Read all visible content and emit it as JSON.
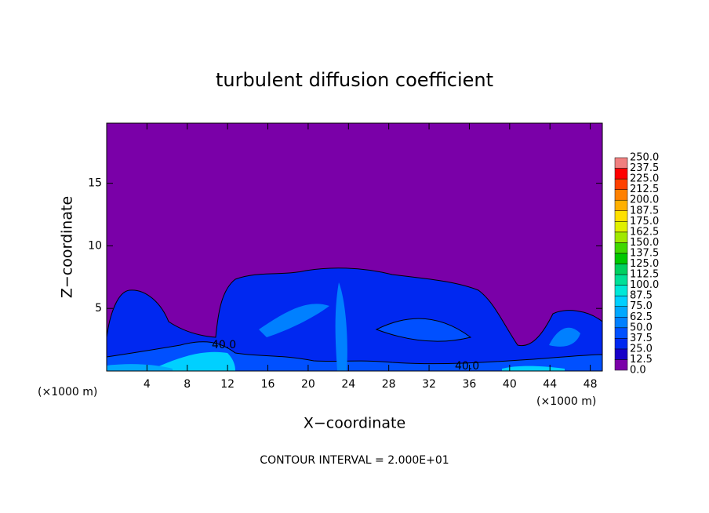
{
  "chart_data": {
    "type": "contour",
    "title": "turbulent diffusion coefficient",
    "xlabel": "X−coordinate",
    "ylabel": "Z−coordinate",
    "x_unit": "(×1000 m)",
    "xlim": [
      0,
      49.2
    ],
    "ylim": [
      0,
      19.8
    ],
    "xticks": [
      4,
      8,
      12,
      16,
      20,
      24,
      28,
      32,
      36,
      40,
      44,
      48
    ],
    "yticks": [
      5,
      10,
      15
    ],
    "contour_label": "40.0",
    "footnote": "CONTOUR INTERVAL = 2.000E+01",
    "colorbar": {
      "ticks": [
        {
          "value": 0,
          "label": "0.0"
        },
        {
          "value": 12.5,
          "label": "12.5"
        },
        {
          "value": 25,
          "label": "25.0"
        },
        {
          "value": 37.5,
          "label": "37.5"
        },
        {
          "value": 50,
          "label": "50.0"
        },
        {
          "value": 62.5,
          "label": "62.5"
        },
        {
          "value": 75,
          "label": "75.0"
        },
        {
          "value": 87.5,
          "label": "87.5"
        },
        {
          "value": 100,
          "label": "100.0"
        },
        {
          "value": 112.5,
          "label": "112.5"
        },
        {
          "value": 125,
          "label": "125.0"
        },
        {
          "value": 137.5,
          "label": "137.5"
        },
        {
          "value": 150,
          "label": "150.0"
        },
        {
          "value": 162.5,
          "label": "162.5"
        },
        {
          "value": 175,
          "label": "175.0"
        },
        {
          "value": 187.5,
          "label": "187.5"
        },
        {
          "value": 200,
          "label": "200.0"
        },
        {
          "value": 212.5,
          "label": "212.5"
        },
        {
          "value": 225,
          "label": "225.0"
        },
        {
          "value": 237.5,
          "label": "237.5"
        },
        {
          "value": 250,
          "label": "250.0"
        }
      ],
      "colors": [
        "#7a00a8",
        "#1800c8",
        "#0028f0",
        "#0050ff",
        "#0080ff",
        "#00a8ff",
        "#00d0ff",
        "#00e8d8",
        "#00e098",
        "#00d060",
        "#00c800",
        "#40d800",
        "#a0e800",
        "#e0f000",
        "#ffe000",
        "#ffb000",
        "#ff8000",
        "#ff4000",
        "#ff0000",
        "#f08080"
      ]
    }
  }
}
